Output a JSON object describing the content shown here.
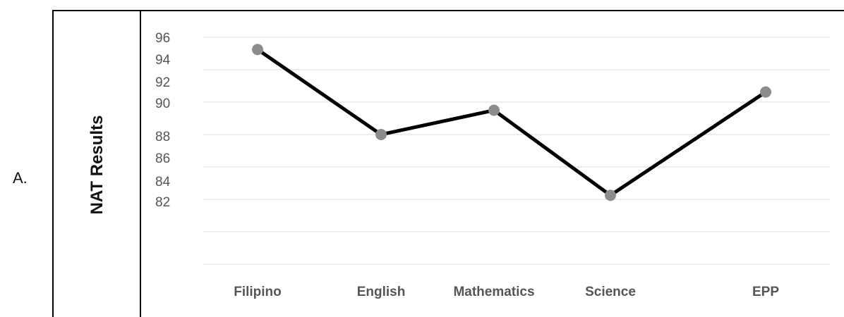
{
  "option_letter": "A.",
  "chart_data": {
    "type": "line",
    "title": "",
    "xlabel": "",
    "ylabel": "NAT Results",
    "categories": [
      "Filipino",
      "English",
      "Mathematics",
      "Science",
      "EPP"
    ],
    "series": [
      {
        "values": [
          95,
          88,
          90,
          83,
          91.5
        ]
      }
    ],
    "y_tick_labels": [
      "96",
      "94",
      "92",
      "90",
      "88",
      "86",
      "84",
      "82"
    ],
    "ylim": [
      78,
      97
    ],
    "grid": true,
    "legend": "none",
    "colors": {
      "line": "#000000",
      "marker": "#8c8c8c",
      "grid": "#d9d9d9",
      "text": "#555555"
    }
  }
}
